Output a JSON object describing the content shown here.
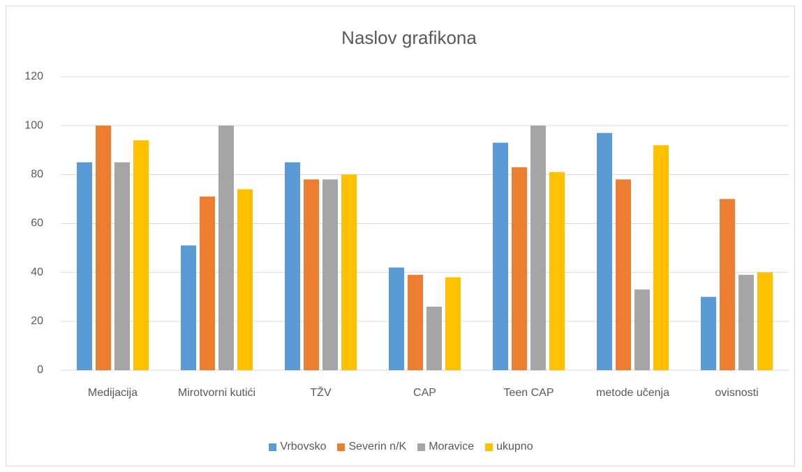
{
  "chart_data": {
    "type": "bar",
    "title": "Naslov grafikona",
    "categories": [
      "Medijacija",
      "Mirotvorni kutići",
      "TŽV",
      "CAP",
      "Teen CAP",
      "metode učenja",
      "ovisnosti"
    ],
    "series": [
      {
        "name": "Vrbovsko",
        "color": "#5b9bd5",
        "values": [
          85,
          51,
          85,
          42,
          93,
          97,
          30
        ]
      },
      {
        "name": "Severin n/K",
        "color": "#ed7d31",
        "values": [
          100,
          71,
          78,
          39,
          83,
          78,
          70
        ]
      },
      {
        "name": "Moravice",
        "color": "#a5a5a5",
        "values": [
          85,
          100,
          78,
          26,
          100,
          33,
          39
        ]
      },
      {
        "name": "ukupno",
        "color": "#ffc000",
        "values": [
          94,
          74,
          80,
          38,
          81,
          92,
          40
        ]
      }
    ],
    "ylim": [
      0,
      120
    ],
    "yticks": [
      0,
      20,
      40,
      60,
      80,
      100,
      120
    ],
    "grid": true,
    "legend": "bottom"
  }
}
